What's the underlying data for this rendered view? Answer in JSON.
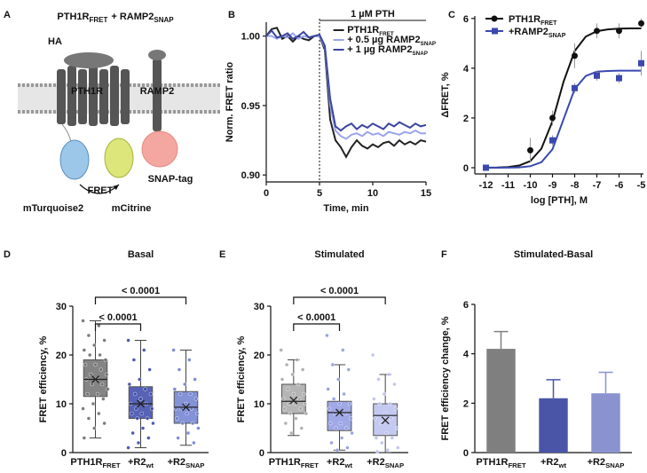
{
  "panel_labels": [
    "A",
    "B",
    "C",
    "D",
    "E",
    "F"
  ],
  "diagram": {
    "title": "PTH1R",
    "title_subscript": "FRET",
    "title_join": "+ RAMP2",
    "title_join_subscript": "SNAP",
    "labels": {
      "tag": "HA",
      "receptor": "PTH1R",
      "ramp": "RAMP2",
      "donor": "mTurquoise2",
      "transfer": "FRET",
      "acceptor": "mCitrine",
      "snap": "SNAP-tag"
    }
  },
  "chart_data": [
    {
      "type": "line",
      "xlabel": "Time, min",
      "ylabel": "Norm. FRET ratio",
      "annotation": "1 µM PTH",
      "event_x": 5,
      "xlim": [
        0,
        15
      ],
      "ylim": [
        0.895,
        1.01
      ],
      "xticks": [
        0,
        5,
        10,
        15
      ],
      "yticks": [
        {
          "value": 0.9,
          "label": "0.90"
        },
        {
          "value": 0.95,
          "label": "0.95"
        },
        {
          "value": 1.0,
          "label": "1.00"
        }
      ],
      "x": [
        0,
        0.5,
        1,
        1.5,
        2,
        2.5,
        3,
        3.5,
        4,
        4.5,
        5,
        5.5,
        6,
        6.5,
        7,
        7.5,
        8,
        8.5,
        9,
        9.5,
        10,
        10.5,
        11,
        11.5,
        12,
        12.5,
        13,
        13.5,
        14,
        14.5,
        15
      ],
      "series": [
        {
          "name": "PTH1R",
          "subscript": "FRET",
          "color": "#222222",
          "values": [
            1.0,
            1.005,
            1.006,
            0.998,
            1.0,
            0.996,
            1.0,
            0.998,
            0.997,
            1.0,
            1.0,
            0.99,
            0.94,
            0.925,
            0.92,
            0.913,
            0.92,
            0.925,
            0.921,
            0.919,
            0.922,
            0.92,
            0.923,
            0.924,
            0.921,
            0.925,
            0.922,
            0.924,
            0.922,
            0.925,
            0.924
          ]
        },
        {
          "name": "+ 0.5 µg RAMP2",
          "subscript": "SNAP",
          "color": "#9aa4ee",
          "values": [
            1.0,
            1.0,
            0.998,
            1.0,
            0.999,
            1.002,
            0.998,
            1.0,
            0.999,
            1.0,
            1.0,
            0.992,
            0.95,
            0.932,
            0.928,
            0.926,
            0.929,
            0.93,
            0.928,
            0.931,
            0.929,
            0.93,
            0.928,
            0.931,
            0.93,
            0.929,
            0.931,
            0.93,
            0.932,
            0.93,
            0.93
          ]
        },
        {
          "name": "+ 1 µg RAMP2",
          "subscript": "SNAP",
          "color": "#3a44a0",
          "values": [
            1.0,
            1.004,
            0.999,
            1.0,
            1.002,
            0.998,
            1.0,
            1.003,
            0.999,
            1.0,
            1.001,
            0.993,
            0.955,
            0.935,
            0.932,
            0.935,
            0.937,
            0.933,
            0.936,
            0.934,
            0.937,
            0.935,
            0.933,
            0.937,
            0.935,
            0.938,
            0.936,
            0.934,
            0.937,
            0.935,
            0.936
          ]
        }
      ]
    },
    {
      "type": "scatter",
      "xlabel": "log [PTH], M",
      "ylabel": "ΔFRET, %",
      "xlim": [
        -12.5,
        -4.9
      ],
      "ylim": [
        -0.25,
        6.1
      ],
      "xticks": [
        -12,
        -11,
        -10,
        -9,
        -8,
        -7,
        -6,
        -5
      ],
      "yticks": [
        0,
        2,
        4,
        6
      ],
      "series": [
        {
          "name": "PTH1R",
          "subscript": "FRET",
          "color": "#111111",
          "marker": "circle",
          "x": [
            -12,
            -10,
            -9,
            -8,
            -7,
            -6,
            -5
          ],
          "values": [
            0,
            0.7,
            2.0,
            4.5,
            5.5,
            5.5,
            5.8
          ],
          "errors": [
            0,
            0.5,
            0.3,
            0.5,
            0.3,
            0.3,
            0.2
          ],
          "fit_x": [
            -12,
            -11.5,
            -11,
            -10.5,
            -10,
            -9.5,
            -9,
            -8.5,
            -8,
            -7.5,
            -7,
            -6.5,
            -6,
            -5.5,
            -5
          ],
          "fit_values": [
            0.003,
            0.009,
            0.028,
            0.087,
            0.267,
            0.766,
            1.87,
            3.46,
            4.69,
            5.27,
            5.49,
            5.56,
            5.59,
            5.6,
            5.6
          ]
        },
        {
          "name": "+RAMP2",
          "subscript": "SNAP",
          "color": "#3a48b0",
          "marker": "square",
          "x": [
            -12,
            -9,
            -8,
            -7,
            -6,
            -5
          ],
          "values": [
            0,
            1.1,
            3.2,
            3.7,
            3.6,
            4.2
          ],
          "errors": [
            0,
            0.2,
            0.2,
            0.2,
            0.2,
            0.5
          ],
          "fit_x": [
            -12,
            -11.5,
            -11,
            -10.5,
            -10,
            -9.5,
            -9,
            -8.5,
            -8,
            -7.5,
            -7,
            -6.5,
            -6,
            -5.5,
            -5
          ],
          "fit_values": [
            0,
            0.001,
            0.004,
            0.015,
            0.06,
            0.22,
            0.74,
            1.95,
            3.16,
            3.69,
            3.86,
            3.89,
            3.9,
            3.9,
            3.9
          ]
        }
      ]
    },
    {
      "type": "box",
      "title": "Basal",
      "ylabel": "FRET efficiency, %",
      "ylim": [
        0,
        30
      ],
      "yticks": [
        0,
        10,
        20,
        30
      ],
      "categories": [
        "PTH1R",
        "+R2",
        "+R2"
      ],
      "category_subscripts": [
        "FRET",
        "wt",
        "SNAP"
      ],
      "brackets": [
        {
          "from": 0,
          "to": 1,
          "label": "< 0.0001"
        },
        {
          "from": 0,
          "to": 2,
          "label": "< 0.0001"
        }
      ],
      "boxes": [
        {
          "color": "#6e6e6e",
          "whisker_low": 3,
          "q1": 11.5,
          "median": 15,
          "q3": 19,
          "whisker_high": 27,
          "mean": 15,
          "points": [
            27,
            26,
            24,
            23,
            22,
            21,
            20,
            20,
            19,
            18,
            18,
            17,
            16,
            16,
            15,
            15,
            14,
            14,
            13,
            12,
            12,
            11,
            10,
            9,
            8,
            7,
            6,
            5,
            3
          ]
        },
        {
          "color": "#3b48a8",
          "whisker_low": 1,
          "q1": 7,
          "median": 10,
          "q3": 13.5,
          "whisker_high": 23,
          "mean": 10,
          "points": [
            23,
            21,
            19,
            17,
            15,
            14,
            13,
            12,
            12,
            11,
            10,
            10,
            9,
            9,
            8,
            8,
            7,
            7,
            6,
            5,
            4,
            3,
            2,
            1
          ]
        },
        {
          "color": "#6f7fd0",
          "whisker_low": 1.5,
          "q1": 6,
          "median": 9.3,
          "q3": 12.5,
          "whisker_high": 21,
          "mean": 9.3,
          "points": [
            21,
            19,
            17,
            15,
            14,
            13,
            12,
            12,
            11,
            10,
            9,
            9,
            9,
            8,
            8,
            7,
            6,
            6,
            5,
            4,
            3,
            2
          ]
        }
      ]
    },
    {
      "type": "box",
      "title": "Stimulated",
      "ylabel": "FRET efficiency, %",
      "ylim": [
        0,
        30
      ],
      "yticks": [
        0,
        10,
        20,
        30
      ],
      "categories": [
        "PTH1R",
        "+R2",
        "+R2"
      ],
      "category_subscripts": [
        "FRET",
        "wt",
        "SNAP"
      ],
      "brackets": [
        {
          "from": 0,
          "to": 1,
          "label": "< 0.0001"
        },
        {
          "from": 0,
          "to": 2,
          "label": "< 0.0001"
        }
      ],
      "boxes": [
        {
          "color": "#a8a8a8",
          "whisker_low": 3.5,
          "q1": 8,
          "median": 10.5,
          "q3": 14,
          "whisker_high": 19,
          "mean": 10.7,
          "points": [
            21,
            19,
            18,
            17,
            16,
            15,
            14,
            13,
            12,
            12,
            11,
            11,
            10,
            10,
            10,
            9,
            9,
            8,
            8,
            7,
            6,
            5,
            4
          ]
        },
        {
          "color": "#8f9ae0",
          "whisker_low": 0.5,
          "q1": 4.5,
          "median": 8.2,
          "q3": 10.5,
          "whisker_high": 18,
          "mean": 8.2,
          "points": [
            24,
            21,
            18,
            17,
            15,
            13,
            12,
            11,
            10,
            10,
            9,
            8,
            8,
            7,
            6,
            6,
            5,
            5,
            4,
            3,
            2,
            1,
            0.5
          ]
        },
        {
          "color": "#b9c0ec",
          "whisker_low": 0,
          "q1": 3.5,
          "median": 7.6,
          "q3": 10,
          "whisker_high": 16,
          "mean": 6.6,
          "points": [
            20,
            16,
            15,
            14,
            12,
            11,
            10,
            10,
            9,
            8,
            7,
            7,
            6,
            5,
            4,
            3,
            3,
            2,
            1,
            0.5,
            0.2
          ]
        }
      ]
    },
    {
      "type": "bar",
      "title": "Stimulated-Basal",
      "ylabel": "FRET efficiency change, %",
      "ylim": [
        0,
        6
      ],
      "yticks": [
        0,
        2,
        4,
        6
      ],
      "categories": [
        "PTH1R",
        "+R2",
        "+R2"
      ],
      "category_subscripts": [
        "FRET",
        "wt",
        "SNAP"
      ],
      "values": [
        4.2,
        2.2,
        2.4
      ],
      "errors": [
        0.7,
        0.75,
        0.85
      ],
      "colors": [
        "#7f7f7f",
        "#4a55a8",
        "#8a93d0"
      ]
    }
  ]
}
